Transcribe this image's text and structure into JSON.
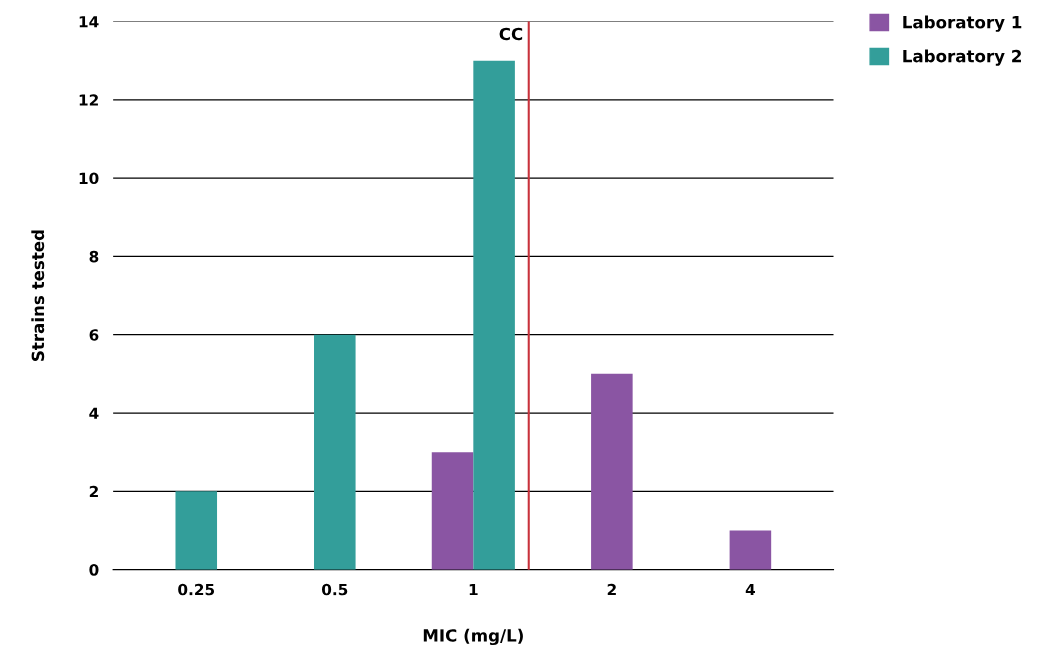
{
  "chart_data": {
    "type": "bar",
    "xlabel": "MIC (mg/L)",
    "ylabel": "Strains tested",
    "categories": [
      "0.25",
      "0.5",
      "1",
      "2",
      "4"
    ],
    "series": [
      {
        "name": "Laboratory 1",
        "color": "#8a55a3",
        "values": [
          null,
          null,
          3,
          5,
          1
        ]
      },
      {
        "name": "Laboratory 2",
        "color": "#339e9a",
        "values": [
          2,
          6,
          13,
          null,
          null
        ]
      }
    ],
    "ylim": [
      0,
      14
    ],
    "yticks": [
      0,
      2,
      4,
      6,
      8,
      10,
      12,
      14
    ],
    "grid": "y",
    "legend": "top right",
    "ref_lines": [
      {
        "axis": "x",
        "value": "1",
        "label": "CC",
        "color": "#c8323c"
      }
    ]
  }
}
